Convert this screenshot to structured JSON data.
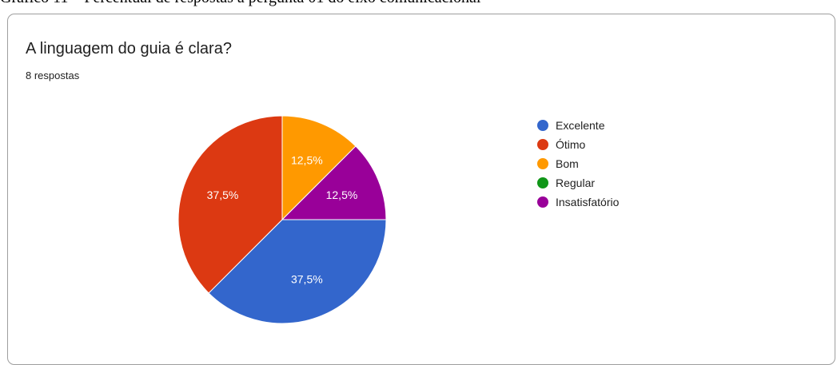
{
  "caption": "Gráfico 11 – Percentual de respostas à pergunta 01 do eixo comunicacional",
  "chart_data": {
    "type": "pie",
    "title": "A linguagem do guia é clara?",
    "subtitle": "8 respostas",
    "legend_position": "right",
    "slices": [
      {
        "label": "Excelente",
        "value": 37.5,
        "display": "37,5%",
        "color": "#3366cc"
      },
      {
        "label": "Ótimo",
        "value": 37.5,
        "display": "37,5%",
        "color": "#dc3912"
      },
      {
        "label": "Bom",
        "value": 12.5,
        "display": "12,5%",
        "color": "#ff9900"
      },
      {
        "label": "Regular",
        "value": 0,
        "display": "",
        "color": "#109618"
      },
      {
        "label": "Insatisfatório",
        "value": 12.5,
        "display": "12,5%",
        "color": "#990099"
      }
    ]
  }
}
